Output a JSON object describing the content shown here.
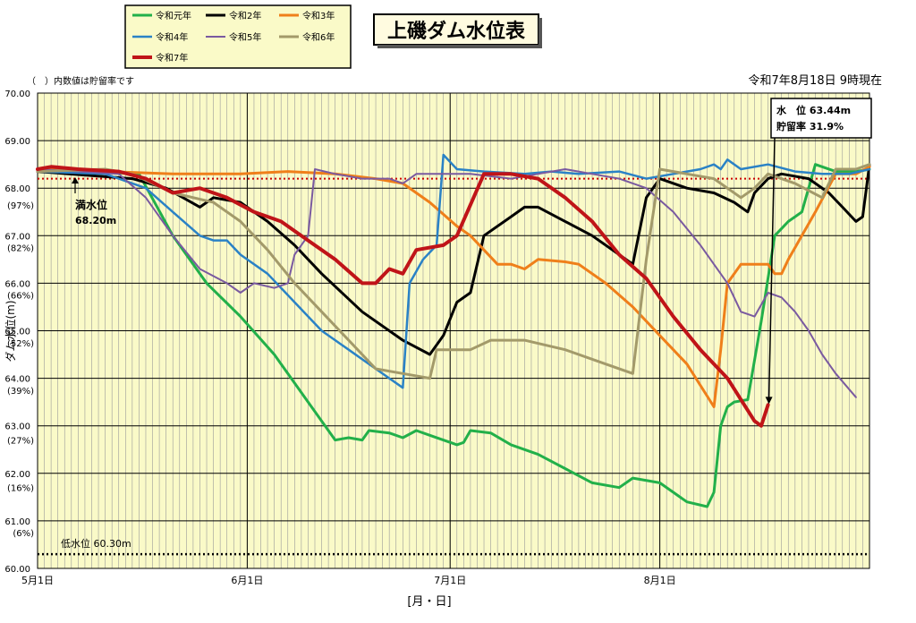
{
  "title": "上磯ダム水位表",
  "timestamp": "令和7年8月18日 9時現在",
  "note": "（　）内数値は貯留率です",
  "xlabel": "[月・日]",
  "ylabel": "ダム水位(m)",
  "full_level": {
    "label": "満水位",
    "value_text": "68.20m",
    "value": 68.2
  },
  "low_level": {
    "label": "低水位 60.30m",
    "value": 60.3
  },
  "callout": {
    "line1": "水　位 63.44m",
    "line2": "貯留率 31.9%"
  },
  "colors": {
    "plot_bg": "#fafac8",
    "grid": "#000000",
    "full_line": "#cc0000",
    "low_line": "#000000"
  },
  "chart_data": {
    "type": "line",
    "title": "上磯ダム水位表",
    "xlabel": "[月・日]",
    "ylabel": "ダム水位(m)",
    "x_ticks": [
      "5月1日",
      "6月1日",
      "7月1日",
      "8月1日"
    ],
    "x_tick_days": [
      0,
      31,
      61,
      92
    ],
    "xlim": [
      0,
      123
    ],
    "ylim": [
      60,
      70
    ],
    "y_ticks": [
      60,
      61,
      62,
      63,
      64,
      65,
      66,
      67,
      68,
      69,
      70
    ],
    "y_tick_labels": [
      "60.00",
      "61.00",
      "62.00",
      "63.00",
      "64.00",
      "65.00",
      "66.00",
      "67.00",
      "68.00",
      "69.00",
      "70.00"
    ],
    "storage_labels": [
      {
        "y": 67.65,
        "label": "(97%)"
      },
      {
        "y": 66.75,
        "label": "(82%)"
      },
      {
        "y": 65.75,
        "label": "(66%)"
      },
      {
        "y": 64.75,
        "label": "(52%)"
      },
      {
        "y": 63.75,
        "label": "(39%)"
      },
      {
        "y": 62.7,
        "label": "(27%)"
      },
      {
        "y": 61.7,
        "label": "(16%)"
      },
      {
        "y": 60.75,
        "label": "(6%)"
      }
    ],
    "grid": true,
    "legend": "top-left",
    "series": [
      {
        "name": "令和元年",
        "color": "#22b04a",
        "width": 3,
        "points": [
          [
            0,
            68.4
          ],
          [
            15,
            68.3
          ],
          [
            20,
            67.0
          ],
          [
            25,
            66.0
          ],
          [
            30,
            65.3
          ],
          [
            35,
            64.5
          ],
          [
            40,
            63.5
          ],
          [
            44,
            62.7
          ],
          [
            46,
            62.75
          ],
          [
            48,
            62.7
          ],
          [
            49,
            62.9
          ],
          [
            52,
            62.85
          ],
          [
            54,
            62.75
          ],
          [
            56,
            62.9
          ],
          [
            58,
            62.8
          ],
          [
            62,
            62.6
          ],
          [
            63,
            62.65
          ],
          [
            64,
            62.9
          ],
          [
            67,
            62.85
          ],
          [
            70,
            62.6
          ],
          [
            74,
            62.4
          ],
          [
            78,
            62.1
          ],
          [
            82,
            61.8
          ],
          [
            86,
            61.7
          ],
          [
            88,
            61.9
          ],
          [
            92,
            61.8
          ],
          [
            96,
            61.4
          ],
          [
            99,
            61.3
          ],
          [
            100,
            61.6
          ],
          [
            101,
            63.0
          ],
          [
            102,
            63.4
          ],
          [
            103,
            63.5
          ],
          [
            105,
            63.55
          ],
          [
            107,
            65.2
          ],
          [
            109,
            67.0
          ],
          [
            111,
            67.3
          ],
          [
            113,
            67.5
          ],
          [
            115,
            68.5
          ],
          [
            118,
            68.35
          ],
          [
            121,
            68.35
          ],
          [
            123,
            68.4
          ]
        ]
      },
      {
        "name": "令和2年",
        "color": "#000000",
        "width": 3,
        "points": [
          [
            0,
            68.35
          ],
          [
            14,
            68.2
          ],
          [
            19,
            68.0
          ],
          [
            24,
            67.6
          ],
          [
            26,
            67.8
          ],
          [
            30,
            67.7
          ],
          [
            34,
            67.3
          ],
          [
            38,
            66.8
          ],
          [
            42,
            66.2
          ],
          [
            48,
            65.4
          ],
          [
            54,
            64.8
          ],
          [
            58,
            64.5
          ],
          [
            60,
            64.9
          ],
          [
            62,
            65.6
          ],
          [
            64,
            65.8
          ],
          [
            66,
            67.0
          ],
          [
            70,
            67.4
          ],
          [
            72,
            67.6
          ],
          [
            74,
            67.6
          ],
          [
            78,
            67.3
          ],
          [
            82,
            67.0
          ],
          [
            86,
            66.6
          ],
          [
            88,
            66.4
          ],
          [
            90,
            67.8
          ],
          [
            92,
            68.2
          ],
          [
            96,
            68.0
          ],
          [
            100,
            67.9
          ],
          [
            103,
            67.7
          ],
          [
            105,
            67.5
          ],
          [
            106,
            67.9
          ],
          [
            108,
            68.2
          ],
          [
            110,
            68.3
          ],
          [
            114,
            68.2
          ],
          [
            117,
            67.9
          ],
          [
            119,
            67.6
          ],
          [
            121,
            67.3
          ],
          [
            122,
            67.4
          ],
          [
            123,
            68.5
          ]
        ]
      },
      {
        "name": "令和3年",
        "color": "#ef7f1a",
        "width": 3,
        "points": [
          [
            0,
            68.4
          ],
          [
            10,
            68.35
          ],
          [
            20,
            68.3
          ],
          [
            30,
            68.3
          ],
          [
            37,
            68.35
          ],
          [
            44,
            68.3
          ],
          [
            50,
            68.2
          ],
          [
            54,
            68.1
          ],
          [
            58,
            67.7
          ],
          [
            62,
            67.2
          ],
          [
            64,
            67.0
          ],
          [
            66,
            66.7
          ],
          [
            68,
            66.4
          ],
          [
            70,
            66.4
          ],
          [
            72,
            66.3
          ],
          [
            74,
            66.5
          ],
          [
            78,
            66.45
          ],
          [
            80,
            66.4
          ],
          [
            84,
            66.0
          ],
          [
            88,
            65.5
          ],
          [
            92,
            64.9
          ],
          [
            96,
            64.3
          ],
          [
            100,
            63.4
          ],
          [
            101,
            64.6
          ],
          [
            102,
            66.0
          ],
          [
            104,
            66.4
          ],
          [
            108,
            66.4
          ],
          [
            109,
            66.2
          ],
          [
            110,
            66.2
          ],
          [
            111,
            66.5
          ],
          [
            113,
            67.0
          ],
          [
            115,
            67.5
          ],
          [
            118,
            68.3
          ],
          [
            121,
            68.3
          ],
          [
            123,
            68.45
          ]
        ]
      },
      {
        "name": "令和4年",
        "color": "#2a82c6",
        "width": 2.5,
        "points": [
          [
            0,
            68.35
          ],
          [
            10,
            68.3
          ],
          [
            16,
            68.0
          ],
          [
            20,
            67.5
          ],
          [
            24,
            67.0
          ],
          [
            26,
            66.9
          ],
          [
            28,
            66.9
          ],
          [
            30,
            66.6
          ],
          [
            34,
            66.2
          ],
          [
            38,
            65.6
          ],
          [
            42,
            65.0
          ],
          [
            46,
            64.6
          ],
          [
            50,
            64.2
          ],
          [
            54,
            63.8
          ],
          [
            55,
            66.0
          ],
          [
            57,
            66.5
          ],
          [
            59,
            66.8
          ],
          [
            60,
            68.7
          ],
          [
            62,
            68.4
          ],
          [
            66,
            68.35
          ],
          [
            72,
            68.3
          ],
          [
            76,
            68.35
          ],
          [
            80,
            68.3
          ],
          [
            86,
            68.35
          ],
          [
            90,
            68.2
          ],
          [
            94,
            68.3
          ],
          [
            98,
            68.4
          ],
          [
            100,
            68.5
          ],
          [
            101,
            68.4
          ],
          [
            102,
            68.6
          ],
          [
            104,
            68.4
          ],
          [
            108,
            68.5
          ],
          [
            112,
            68.35
          ],
          [
            116,
            68.3
          ],
          [
            120,
            68.3
          ],
          [
            123,
            68.4
          ]
        ]
      },
      {
        "name": "令和5年",
        "color": "#7a5aa0",
        "width": 2,
        "points": [
          [
            0,
            68.4
          ],
          [
            12,
            68.3
          ],
          [
            16,
            67.8
          ],
          [
            20,
            67.0
          ],
          [
            24,
            66.3
          ],
          [
            28,
            66.0
          ],
          [
            30,
            65.8
          ],
          [
            32,
            66.0
          ],
          [
            35,
            65.9
          ],
          [
            37,
            66.0
          ],
          [
            38,
            66.6
          ],
          [
            40,
            67.0
          ],
          [
            41,
            68.4
          ],
          [
            44,
            68.3
          ],
          [
            48,
            68.2
          ],
          [
            52,
            68.2
          ],
          [
            54,
            68.1
          ],
          [
            56,
            68.3
          ],
          [
            60,
            68.3
          ],
          [
            64,
            68.3
          ],
          [
            70,
            68.2
          ],
          [
            74,
            68.3
          ],
          [
            78,
            68.4
          ],
          [
            82,
            68.3
          ],
          [
            86,
            68.2
          ],
          [
            90,
            68.0
          ],
          [
            94,
            67.5
          ],
          [
            98,
            66.8
          ],
          [
            102,
            66.0
          ],
          [
            104,
            65.4
          ],
          [
            106,
            65.3
          ],
          [
            108,
            65.8
          ],
          [
            110,
            65.7
          ],
          [
            112,
            65.4
          ],
          [
            114,
            65.0
          ],
          [
            116,
            64.5
          ],
          [
            118,
            64.1
          ],
          [
            121,
            63.6
          ]
        ]
      },
      {
        "name": "令和6年",
        "color": "#a39a6a",
        "width": 3,
        "points": [
          [
            0,
            68.35
          ],
          [
            10,
            68.4
          ],
          [
            14,
            68.3
          ],
          [
            20,
            67.9
          ],
          [
            26,
            67.7
          ],
          [
            30,
            67.3
          ],
          [
            34,
            66.7
          ],
          [
            38,
            66.0
          ],
          [
            42,
            65.4
          ],
          [
            46,
            64.8
          ],
          [
            50,
            64.2
          ],
          [
            54,
            64.1
          ],
          [
            58,
            64.0
          ],
          [
            59,
            64.6
          ],
          [
            61,
            64.6
          ],
          [
            64,
            64.6
          ],
          [
            67,
            64.8
          ],
          [
            72,
            64.8
          ],
          [
            78,
            64.6
          ],
          [
            84,
            64.3
          ],
          [
            88,
            64.1
          ],
          [
            90,
            66.5
          ],
          [
            92,
            68.4
          ],
          [
            96,
            68.3
          ],
          [
            100,
            68.2
          ],
          [
            104,
            67.8
          ],
          [
            106,
            68.0
          ],
          [
            108,
            68.3
          ],
          [
            112,
            68.1
          ],
          [
            116,
            67.8
          ],
          [
            118,
            68.4
          ],
          [
            121,
            68.4
          ],
          [
            123,
            68.5
          ]
        ]
      },
      {
        "name": "令和7年",
        "color": "#c01418",
        "width": 4,
        "points": [
          [
            0,
            68.4
          ],
          [
            2,
            68.45
          ],
          [
            6,
            68.4
          ],
          [
            12,
            68.35
          ],
          [
            16,
            68.2
          ],
          [
            20,
            67.9
          ],
          [
            24,
            68.0
          ],
          [
            28,
            67.8
          ],
          [
            32,
            67.5
          ],
          [
            36,
            67.3
          ],
          [
            40,
            66.9
          ],
          [
            44,
            66.5
          ],
          [
            48,
            66.0
          ],
          [
            50,
            66.0
          ],
          [
            52,
            66.3
          ],
          [
            54,
            66.2
          ],
          [
            56,
            66.7
          ],
          [
            60,
            66.8
          ],
          [
            62,
            67.0
          ],
          [
            66,
            68.3
          ],
          [
            70,
            68.3
          ],
          [
            74,
            68.2
          ],
          [
            78,
            67.8
          ],
          [
            82,
            67.3
          ],
          [
            86,
            66.6
          ],
          [
            90,
            66.1
          ],
          [
            94,
            65.3
          ],
          [
            98,
            64.6
          ],
          [
            102,
            64.0
          ],
          [
            106,
            63.1
          ],
          [
            107,
            63.0
          ],
          [
            108,
            63.44
          ]
        ]
      }
    ]
  }
}
